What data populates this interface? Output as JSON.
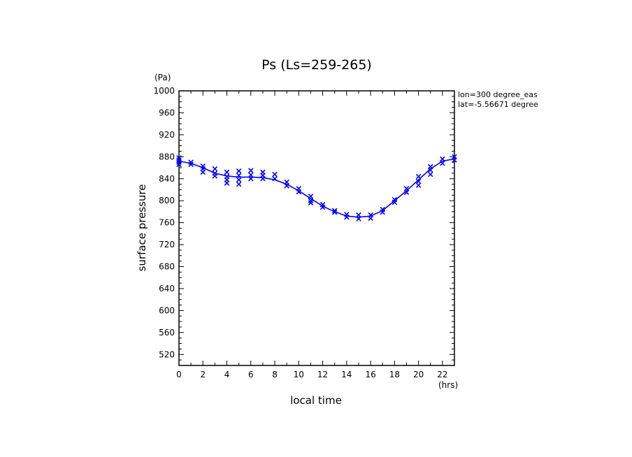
{
  "chart_data": {
    "type": "line",
    "title": "Ps (Ls=259-265)",
    "xlabel": "local time",
    "ylabel": "surface pressure",
    "x_unit": "(hrs)",
    "y_unit": "(Pa)",
    "xlim": [
      0,
      23
    ],
    "ylim": [
      500,
      1000
    ],
    "x_ticks": [
      0,
      2,
      4,
      6,
      8,
      10,
      12,
      14,
      16,
      18,
      20,
      22
    ],
    "y_ticks": [
      520,
      560,
      600,
      640,
      680,
      720,
      760,
      800,
      840,
      880,
      920,
      960,
      1000
    ],
    "annotations": [
      "lon=300 degree_eas",
      "lat=-5.56671 degree"
    ],
    "line_color": "#0000ff",
    "series": [
      {
        "style": "line",
        "x": [
          0,
          1,
          2,
          3,
          4,
          5,
          6,
          7,
          8,
          9,
          10,
          11,
          12,
          13,
          14,
          15,
          16,
          17,
          18,
          19,
          20,
          21,
          22,
          23
        ],
        "y": [
          872,
          868,
          860,
          850,
          845,
          843,
          843,
          842,
          838,
          830,
          818,
          804,
          790,
          780,
          772,
          770,
          772,
          782,
          800,
          818,
          838,
          858,
          872,
          876
        ]
      },
      {
        "style": "markers",
        "marker": "x",
        "points": [
          [
            0,
            878
          ],
          [
            0,
            870
          ],
          [
            0,
            866
          ],
          [
            0,
            874
          ],
          [
            1,
            870
          ],
          [
            1,
            866
          ],
          [
            2,
            863
          ],
          [
            2,
            858
          ],
          [
            2,
            852
          ],
          [
            3,
            858
          ],
          [
            3,
            850
          ],
          [
            3,
            845
          ],
          [
            4,
            852
          ],
          [
            4,
            844
          ],
          [
            4,
            838
          ],
          [
            4,
            832
          ],
          [
            5,
            854
          ],
          [
            5,
            846
          ],
          [
            5,
            838
          ],
          [
            5,
            830
          ],
          [
            6,
            855
          ],
          [
            6,
            847
          ],
          [
            6,
            840
          ],
          [
            7,
            852
          ],
          [
            7,
            846
          ],
          [
            7,
            840
          ],
          [
            8,
            848
          ],
          [
            8,
            840
          ],
          [
            9,
            834
          ],
          [
            9,
            827
          ],
          [
            10,
            822
          ],
          [
            10,
            816
          ],
          [
            11,
            808
          ],
          [
            11,
            800
          ],
          [
            11,
            796
          ],
          [
            12,
            793
          ],
          [
            12,
            788
          ],
          [
            13,
            782
          ],
          [
            13,
            779
          ],
          [
            14,
            775
          ],
          [
            14,
            770
          ],
          [
            15,
            774
          ],
          [
            15,
            767
          ],
          [
            16,
            774
          ],
          [
            16,
            768
          ],
          [
            17,
            784
          ],
          [
            17,
            779
          ],
          [
            18,
            802
          ],
          [
            18,
            797
          ],
          [
            19,
            822
          ],
          [
            19,
            815
          ],
          [
            20,
            844
          ],
          [
            20,
            835
          ],
          [
            20,
            828
          ],
          [
            21,
            862
          ],
          [
            21,
            856
          ],
          [
            21,
            848
          ],
          [
            22,
            876
          ],
          [
            22,
            868
          ],
          [
            23,
            880
          ],
          [
            23,
            874
          ]
        ]
      }
    ]
  }
}
